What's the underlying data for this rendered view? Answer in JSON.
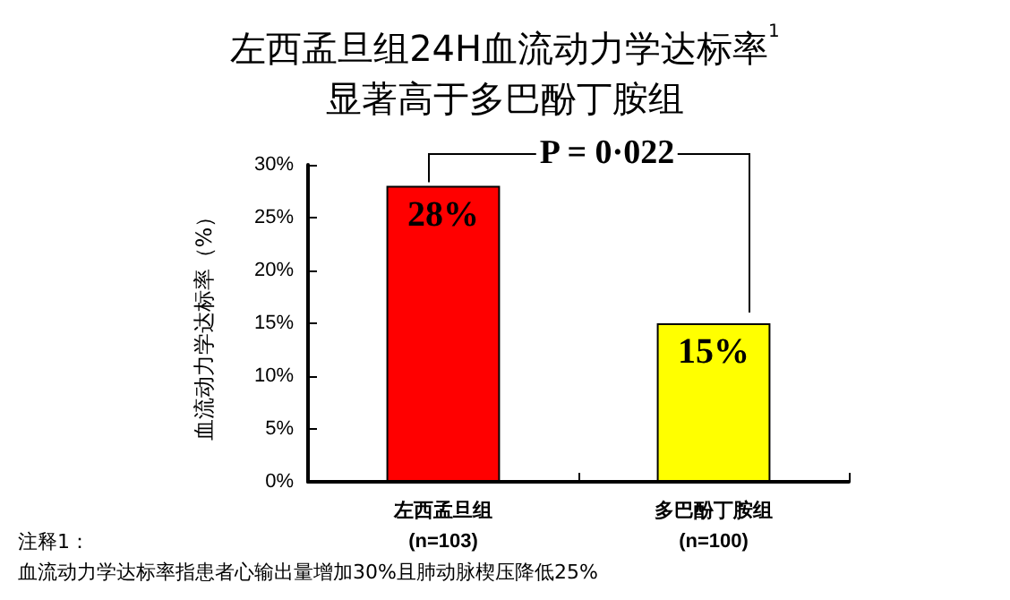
{
  "chart_data": {
    "type": "bar",
    "title": "左西孟旦组24H血流动力学达标率$^{1}$\n显著高于多巴酚丁胺组",
    "ylabel": "血流动力学达标率（%）",
    "categories": [
      "左西孟旦组\n(n=103)",
      "多巴酚丁胺组\n(n=100)"
    ],
    "values": [
      28,
      15
    ],
    "colors": [
      "#ff0000",
      "#ffff00"
    ],
    "value_labels": [
      "28%",
      "15%"
    ],
    "ylim": [
      0,
      30
    ],
    "yticks": [
      {
        "value": 0,
        "label": "0%"
      },
      {
        "value": 5,
        "label": "5%"
      },
      {
        "value": 10,
        "label": "10%"
      },
      {
        "value": 15,
        "label": "15%"
      },
      {
        "value": 20,
        "label": "20%"
      },
      {
        "value": 25,
        "label": "25%"
      },
      {
        "value": 30,
        "label": "30%"
      }
    ],
    "grid": false,
    "annotations": [
      "P = 0·022",
      "注释1：",
      "血流动力学达标率指患者心输出量增加30%且肺动脉楔压降低25%"
    ]
  }
}
